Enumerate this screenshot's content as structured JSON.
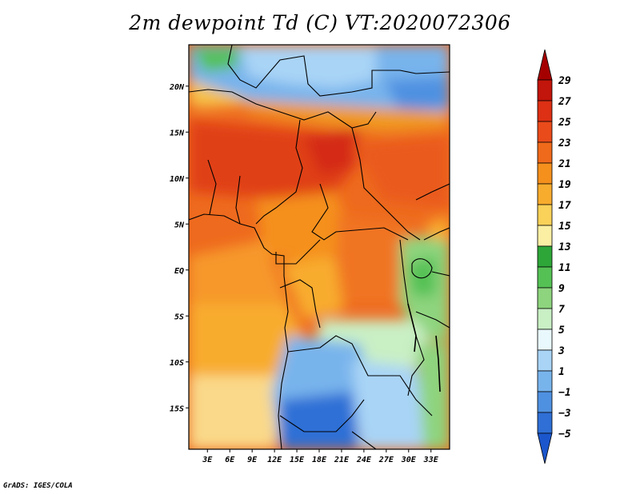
{
  "title": "2m dewpoint Td (C) VT:2020072306",
  "footer": "GrADS: IGES/COLA",
  "map": {
    "lat_labels": [
      "20N",
      "15N",
      "10N",
      "5N",
      "EQ",
      "5S",
      "10S",
      "15S"
    ],
    "lon_labels": [
      "3E",
      "6E",
      "9E",
      "12E",
      "15E",
      "18E",
      "21E",
      "24E",
      "27E",
      "30E",
      "33E"
    ],
    "lat_range": [
      -19.5,
      24.5
    ],
    "lon_range": [
      0.5,
      35.5
    ],
    "background_color": "#ee6a1e"
  },
  "colorbar": {
    "labels": [
      "29",
      "27",
      "25",
      "23",
      "21",
      "19",
      "17",
      "15",
      "13",
      "11",
      "9",
      "7",
      "5",
      "3",
      "1",
      "−1",
      "−3",
      "−5"
    ],
    "colors": [
      "#a50000",
      "#c2150b",
      "#dd3014",
      "#ea4b1a",
      "#f06a1b",
      "#f5901d",
      "#f8ac2e",
      "#fad159",
      "#fbefa4",
      "#2ea638",
      "#55c155",
      "#8ed47e",
      "#c9efc5",
      "#e9f8fc",
      "#a9d4f6",
      "#78b4ec",
      "#4f91e1",
      "#2f6fd6",
      "#1b56cc"
    ]
  }
}
